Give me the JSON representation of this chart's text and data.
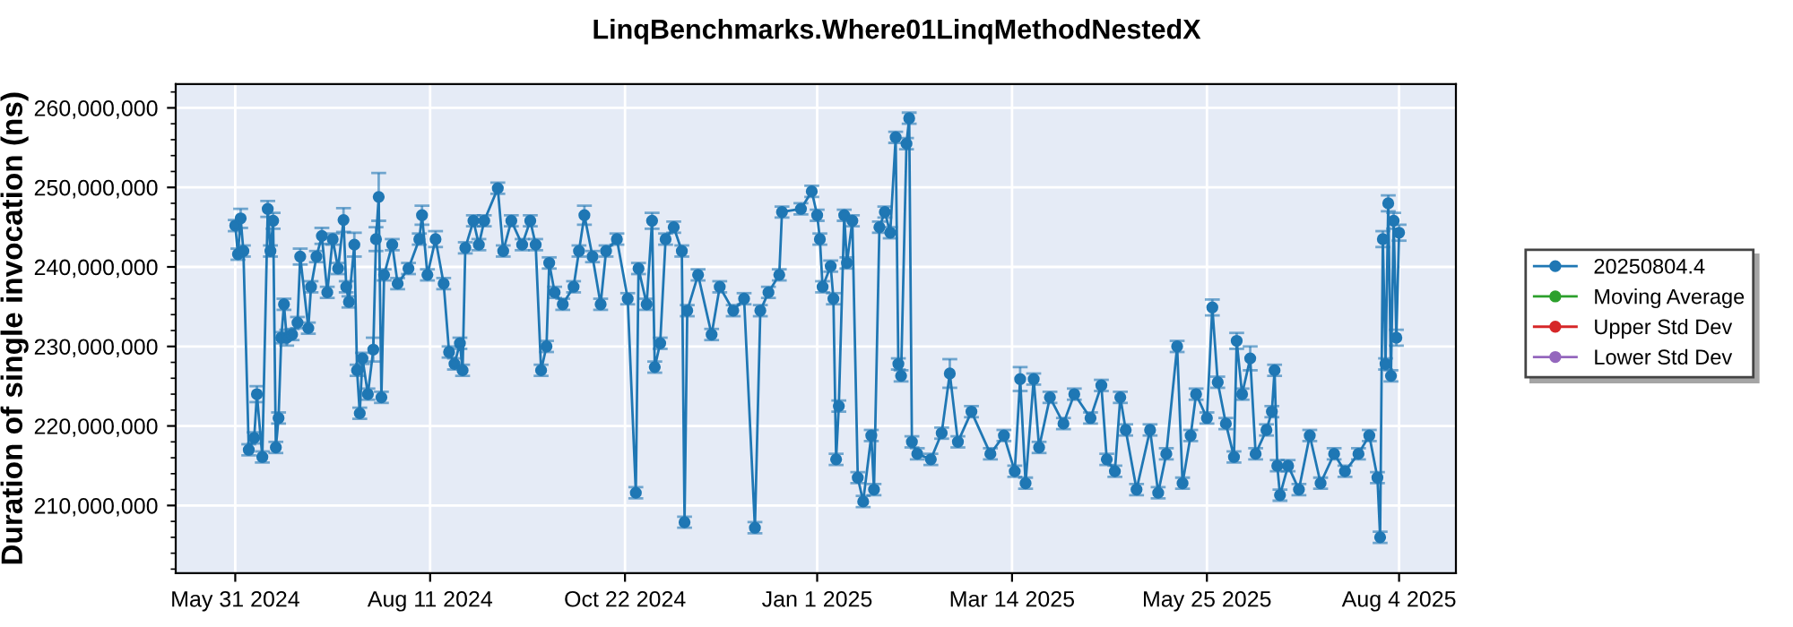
{
  "chart_data": {
    "type": "line",
    "title": "LinqBenchmarks.Where01LinqMethodNestedX",
    "ylabel": "Duration of single invocation (ns)",
    "x": [
      "2024-05-31",
      "2024-06-01",
      "2024-06-02",
      "2024-06-03",
      "2024-06-05",
      "2024-06-07",
      "2024-06-08",
      "2024-06-10",
      "2024-06-12",
      "2024-06-13",
      "2024-06-14",
      "2024-06-15",
      "2024-06-16",
      "2024-06-17",
      "2024-06-18",
      "2024-06-19",
      "2024-06-21",
      "2024-06-23",
      "2024-06-24",
      "2024-06-27",
      "2024-06-28",
      "2024-06-30",
      "2024-07-02",
      "2024-07-04",
      "2024-07-06",
      "2024-07-08",
      "2024-07-10",
      "2024-07-11",
      "2024-07-12",
      "2024-07-14",
      "2024-07-15",
      "2024-07-16",
      "2024-07-17",
      "2024-07-19",
      "2024-07-21",
      "2024-07-22",
      "2024-07-23",
      "2024-07-24",
      "2024-07-25",
      "2024-07-28",
      "2024-07-30",
      "2024-08-03",
      "2024-08-07",
      "2024-08-08",
      "2024-08-10",
      "2024-08-13",
      "2024-08-16",
      "2024-08-18",
      "2024-08-20",
      "2024-08-22",
      "2024-08-23",
      "2024-08-24",
      "2024-08-27",
      "2024-08-29",
      "2024-08-31",
      "2024-09-05",
      "2024-09-07",
      "2024-09-10",
      "2024-09-14",
      "2024-09-17",
      "2024-09-19",
      "2024-09-21",
      "2024-09-23",
      "2024-09-24",
      "2024-09-26",
      "2024-09-29",
      "2024-10-03",
      "2024-10-05",
      "2024-10-07",
      "2024-10-10",
      "2024-10-13",
      "2024-10-15",
      "2024-10-19",
      "2024-10-23",
      "2024-10-26",
      "2024-10-27",
      "2024-10-30",
      "2024-11-01",
      "2024-11-02",
      "2024-11-04",
      "2024-11-06",
      "2024-11-09",
      "2024-11-12",
      "2024-11-13",
      "2024-11-14",
      "2024-11-18",
      "2024-11-23",
      "2024-11-26",
      "2024-12-01",
      "2024-12-05",
      "2024-12-09",
      "2024-12-11",
      "2024-12-14",
      "2024-12-18",
      "2024-12-19",
      "2024-12-26",
      "2024-12-30",
      "2025-01-01",
      "2025-01-02",
      "2025-01-03",
      "2025-01-06",
      "2025-01-07",
      "2025-01-08",
      "2025-01-09",
      "2025-01-11",
      "2025-01-12",
      "2025-01-14",
      "2025-01-16",
      "2025-01-18",
      "2025-01-21",
      "2025-01-22",
      "2025-01-24",
      "2025-01-26",
      "2025-01-28",
      "2025-01-30",
      "2025-01-31",
      "2025-02-01",
      "2025-02-03",
      "2025-02-04",
      "2025-02-05",
      "2025-02-07",
      "2025-02-12",
      "2025-02-16",
      "2025-02-19",
      "2025-02-22",
      "2025-02-27",
      "2025-03-06",
      "2025-03-11",
      "2025-03-15",
      "2025-03-17",
      "2025-03-19",
      "2025-03-22",
      "2025-03-24",
      "2025-03-28",
      "2025-04-02",
      "2025-04-06",
      "2025-04-12",
      "2025-04-16",
      "2025-04-18",
      "2025-04-21",
      "2025-04-23",
      "2025-04-25",
      "2025-04-29",
      "2025-05-04",
      "2025-05-07",
      "2025-05-10",
      "2025-05-14",
      "2025-05-16",
      "2025-05-19",
      "2025-05-21",
      "2025-05-25",
      "2025-05-27",
      "2025-05-29",
      "2025-06-01",
      "2025-06-04",
      "2025-06-05",
      "2025-06-07",
      "2025-06-10",
      "2025-06-12",
      "2025-06-16",
      "2025-06-18",
      "2025-06-19",
      "2025-06-20",
      "2025-06-21",
      "2025-06-24",
      "2025-06-28",
      "2025-07-02",
      "2025-07-06",
      "2025-07-11",
      "2025-07-15",
      "2025-07-20",
      "2025-07-24",
      "2025-07-27",
      "2025-07-28",
      "2025-07-29",
      "2025-07-30",
      "2025-07-31",
      "2025-08-01",
      "2025-08-02",
      "2025-08-03",
      "2025-08-04"
    ],
    "series": [
      {
        "name": "20250804.4",
        "color": "#1f77b4",
        "values": [
          245200000,
          241600000,
          246100000,
          242000000,
          217000000,
          218500000,
          224000000,
          216100000,
          247300000,
          242000000,
          245800000,
          217300000,
          221000000,
          231100000,
          235300000,
          231100000,
          231500000,
          233000000,
          241300000,
          232300000,
          237500000,
          241300000,
          243900000,
          236800000,
          243500000,
          239800000,
          245900000,
          237500000,
          235600000,
          242800000,
          227000000,
          221600000,
          228500000,
          224000000,
          229600000,
          243500000,
          248800000,
          223600000,
          239000000,
          242800000,
          237900000,
          239800000,
          243500000,
          246500000,
          239000000,
          243500000,
          237900000,
          229300000,
          227800000,
          230400000,
          227000000,
          242400000,
          245800000,
          242800000,
          245800000,
          249900000,
          242000000,
          245800000,
          242800000,
          245800000,
          242800000,
          227000000,
          230000000,
          240500000,
          236800000,
          235300000,
          237500000,
          242000000,
          246500000,
          241300000,
          235300000,
          242000000,
          243500000,
          236000000,
          211600000,
          239800000,
          235300000,
          245800000,
          227400000,
          230400000,
          243500000,
          245000000,
          242000000,
          207900000,
          234500000,
          239000000,
          231500000,
          237500000,
          234500000,
          236000000,
          207200000,
          234500000,
          236800000,
          239000000,
          246900000,
          247300000,
          249500000,
          246500000,
          243500000,
          237500000,
          240100000,
          236000000,
          215800000,
          222500000,
          246500000,
          240500000,
          245800000,
          213500000,
          210500000,
          218800000,
          212000000,
          245000000,
          246900000,
          244300000,
          256300000,
          227800000,
          226300000,
          255500000,
          258700000,
          218000000,
          216500000,
          215800000,
          219100000,
          226600000,
          218000000,
          221800000,
          216500000,
          218800000,
          214300000,
          225900000,
          212800000,
          225900000,
          217300000,
          223600000,
          220300000,
          224000000,
          221000000,
          225100000,
          215800000,
          214300000,
          223600000,
          219500000,
          212000000,
          219500000,
          211600000,
          216500000,
          230000000,
          212800000,
          218800000,
          224000000,
          221000000,
          234900000,
          225500000,
          220300000,
          216100000,
          230700000,
          224000000,
          228500000,
          216500000,
          219500000,
          221800000,
          227000000,
          215000000,
          211300000,
          215000000,
          212000000,
          218800000,
          212800000,
          216500000,
          214300000,
          216500000,
          218800000,
          213500000,
          206000000,
          243500000,
          227800000,
          248000000,
          226300000,
          245800000,
          231100000,
          244300000
        ],
        "errors": [
          700000,
          700000,
          1200000,
          700000,
          700000,
          700000,
          1000000,
          700000,
          1000000,
          700000,
          1000000,
          700000,
          700000,
          700000,
          700000,
          1000000,
          700000,
          700000,
          1000000,
          700000,
          700000,
          700000,
          1000000,
          700000,
          700000,
          700000,
          1500000,
          700000,
          700000,
          1500000,
          700000,
          700000,
          700000,
          700000,
          1500000,
          1500000,
          3000000,
          700000,
          700000,
          700000,
          700000,
          700000,
          700000,
          1200000,
          700000,
          1000000,
          700000,
          700000,
          700000,
          700000,
          700000,
          700000,
          700000,
          700000,
          700000,
          700000,
          700000,
          700000,
          700000,
          700000,
          700000,
          700000,
          700000,
          700000,
          700000,
          700000,
          700000,
          700000,
          1200000,
          700000,
          700000,
          700000,
          700000,
          700000,
          700000,
          700000,
          700000,
          1000000,
          700000,
          700000,
          700000,
          700000,
          700000,
          700000,
          700000,
          700000,
          700000,
          700000,
          700000,
          700000,
          700000,
          700000,
          700000,
          700000,
          700000,
          700000,
          700000,
          700000,
          700000,
          700000,
          700000,
          700000,
          700000,
          700000,
          700000,
          700000,
          700000,
          700000,
          700000,
          700000,
          700000,
          700000,
          700000,
          700000,
          700000,
          700000,
          700000,
          700000,
          700000,
          700000,
          700000,
          700000,
          700000,
          1800000,
          700000,
          700000,
          700000,
          700000,
          700000,
          1500000,
          700000,
          700000,
          700000,
          700000,
          700000,
          700000,
          700000,
          700000,
          700000,
          700000,
          700000,
          700000,
          700000,
          700000,
          700000,
          700000,
          700000,
          700000,
          700000,
          700000,
          700000,
          1000000,
          700000,
          700000,
          700000,
          1000000,
          700000,
          1500000,
          700000,
          700000,
          700000,
          700000,
          700000,
          700000,
          700000,
          700000,
          700000,
          700000,
          700000,
          700000,
          700000,
          700000,
          700000,
          700000,
          1000000,
          700000,
          1000000,
          700000,
          1000000,
          1000000,
          1000000
        ]
      },
      {
        "name": "Moving Average",
        "color": "#2ca02c",
        "values": [
          null,
          null,
          null,
          null,
          null,
          null,
          null,
          null,
          null,
          null,
          null,
          null,
          null,
          null,
          null,
          null,
          null,
          null,
          null,
          null,
          null,
          null,
          null,
          null,
          null,
          null,
          null,
          null,
          null,
          null,
          null,
          null,
          null,
          null,
          null,
          null,
          null,
          null,
          null,
          null,
          null,
          null,
          null,
          null,
          null,
          null,
          null,
          null,
          null,
          null,
          null,
          null,
          null,
          null,
          null,
          null,
          null,
          null,
          null,
          null,
          null,
          null,
          null,
          null,
          null,
          null,
          null,
          null,
          null,
          null,
          null,
          null,
          null,
          null,
          null,
          null,
          null,
          null,
          null,
          null,
          null,
          null,
          null,
          null,
          null,
          null,
          null,
          null,
          null,
          null,
          null,
          null,
          null,
          null,
          null,
          null,
          null,
          null,
          null,
          null,
          null,
          null,
          null,
          null,
          null,
          null,
          null,
          null,
          null,
          null,
          null,
          null,
          null,
          null,
          null,
          null,
          null,
          null,
          null,
          null,
          null,
          null,
          null,
          null,
          null,
          null,
          null,
          null,
          null,
          null,
          null,
          null,
          null,
          null,
          null,
          null,
          null,
          null,
          null,
          null,
          null,
          null,
          null,
          null,
          null,
          null,
          null,
          null,
          null,
          null,
          null,
          null,
          null,
          null,
          null,
          null,
          null,
          null,
          null,
          null,
          null,
          null,
          null,
          null,
          null,
          null,
          null,
          null,
          null,
          null,
          null,
          null,
          null,
          null,
          null,
          null,
          null,
          null,
          null,
          null,
          null
        ]
      },
      {
        "name": "Upper Std Dev",
        "color": "#d62728",
        "values": [
          null,
          null,
          null,
          null,
          null,
          null,
          null,
          null,
          null,
          null,
          null,
          null,
          null,
          null,
          null,
          null,
          null,
          null,
          null,
          null,
          null,
          null,
          null,
          null,
          null,
          null,
          null,
          null,
          null,
          null,
          null,
          null,
          null,
          null,
          null,
          null,
          null,
          null,
          null,
          null,
          null,
          null,
          null,
          null,
          null,
          null,
          null,
          null,
          null,
          null,
          null,
          null,
          null,
          null,
          null,
          null,
          null,
          null,
          null,
          null,
          null,
          null,
          null,
          null,
          null,
          null,
          null,
          null,
          null,
          null,
          null,
          null,
          null,
          null,
          null,
          null,
          null,
          null,
          null,
          null,
          null,
          null,
          null,
          null,
          null,
          null,
          null,
          null,
          null,
          null,
          null,
          null,
          null,
          null,
          null,
          null,
          null,
          null,
          null,
          null,
          null,
          null,
          null,
          null,
          null,
          null,
          null,
          null,
          null,
          null,
          null,
          null,
          null,
          null,
          null,
          null,
          null,
          null,
          null,
          null,
          null,
          null,
          null,
          null,
          null,
          null,
          null,
          null,
          null,
          null,
          null,
          null,
          null,
          null,
          null,
          null,
          null,
          null,
          null,
          null,
          null,
          null,
          null,
          null,
          null,
          null,
          null,
          null,
          null,
          null,
          null,
          null,
          null,
          null,
          null,
          null,
          null,
          null,
          null,
          null,
          null,
          null,
          null,
          null,
          null,
          null,
          null,
          null,
          null,
          null,
          null,
          null,
          null,
          null,
          null,
          null,
          null,
          null,
          null,
          null,
          null
        ]
      },
      {
        "name": "Lower Std Dev",
        "color": "#9467bd",
        "values": [
          null,
          null,
          null,
          null,
          null,
          null,
          null,
          null,
          null,
          null,
          null,
          null,
          null,
          null,
          null,
          null,
          null,
          null,
          null,
          null,
          null,
          null,
          null,
          null,
          null,
          null,
          null,
          null,
          null,
          null,
          null,
          null,
          null,
          null,
          null,
          null,
          null,
          null,
          null,
          null,
          null,
          null,
          null,
          null,
          null,
          null,
          null,
          null,
          null,
          null,
          null,
          null,
          null,
          null,
          null,
          null,
          null,
          null,
          null,
          null,
          null,
          null,
          null,
          null,
          null,
          null,
          null,
          null,
          null,
          null,
          null,
          null,
          null,
          null,
          null,
          null,
          null,
          null,
          null,
          null,
          null,
          null,
          null,
          null,
          null,
          null,
          null,
          null,
          null,
          null,
          null,
          null,
          null,
          null,
          null,
          null,
          null,
          null,
          null,
          null,
          null,
          null,
          null,
          null,
          null,
          null,
          null,
          null,
          null,
          null,
          null,
          null,
          null,
          null,
          null,
          null,
          null,
          null,
          null,
          null,
          null,
          null,
          null,
          null,
          null,
          null,
          null,
          null,
          null,
          null,
          null,
          null,
          null,
          null,
          null,
          null,
          null,
          null,
          null,
          null,
          null,
          null,
          null,
          null,
          null,
          null,
          null,
          null,
          null,
          null,
          null,
          null,
          null,
          null,
          null,
          null,
          null,
          null,
          null,
          null,
          null,
          null,
          null,
          null,
          null,
          null,
          null,
          null,
          null,
          null,
          null,
          null,
          null,
          null,
          null,
          null,
          null,
          null,
          null,
          null,
          null
        ]
      }
    ],
    "xlim": [
      "2024-05-09",
      "2025-08-25"
    ],
    "xticks": [
      {
        "value": "2024-05-31",
        "label": "May 31 2024"
      },
      {
        "value": "2024-08-11",
        "label": "Aug 11 2024"
      },
      {
        "value": "2024-10-22",
        "label": "Oct 22 2024"
      },
      {
        "value": "2025-01-01",
        "label": "Jan 1 2025"
      },
      {
        "value": "2025-03-14",
        "label": "Mar 14 2025"
      },
      {
        "value": "2025-05-25",
        "label": "May 25 2025"
      },
      {
        "value": "2025-08-04",
        "label": "Aug 4 2025"
      }
    ],
    "ylim": [
      201500000,
      263000000
    ],
    "yticks": [
      {
        "value": 210000000,
        "label": "210,000,000"
      },
      {
        "value": 220000000,
        "label": "220,000,000"
      },
      {
        "value": 230000000,
        "label": "230,000,000"
      },
      {
        "value": 240000000,
        "label": "240,000,000"
      },
      {
        "value": 250000000,
        "label": "250,000,000"
      },
      {
        "value": 260000000,
        "label": "260,000,000"
      }
    ],
    "grid": true,
    "legend": "right",
    "marker": "circle",
    "line_style": "solid"
  }
}
